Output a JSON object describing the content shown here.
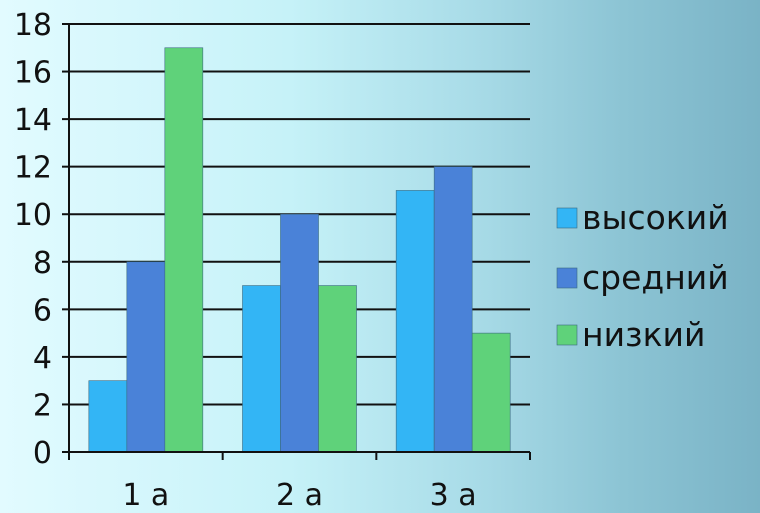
{
  "chart_data": {
    "type": "bar",
    "categories": [
      "1 а",
      "2 а",
      "3 а"
    ],
    "series": [
      {
        "name": "высокий",
        "values": [
          3,
          7,
          11
        ],
        "color": "#33b5f5"
      },
      {
        "name": "средний",
        "values": [
          8,
          10,
          12
        ],
        "color": "#4a82d8"
      },
      {
        "name": "низкий",
        "values": [
          17,
          7,
          5
        ],
        "color": "#5fd27a"
      }
    ],
    "title": "",
    "xlabel": "",
    "ylabel": "",
    "ylim": [
      0,
      18
    ],
    "yticks": [
      0,
      2,
      4,
      6,
      8,
      10,
      12,
      14,
      16,
      18
    ],
    "grid": true,
    "legend_position": "right"
  }
}
